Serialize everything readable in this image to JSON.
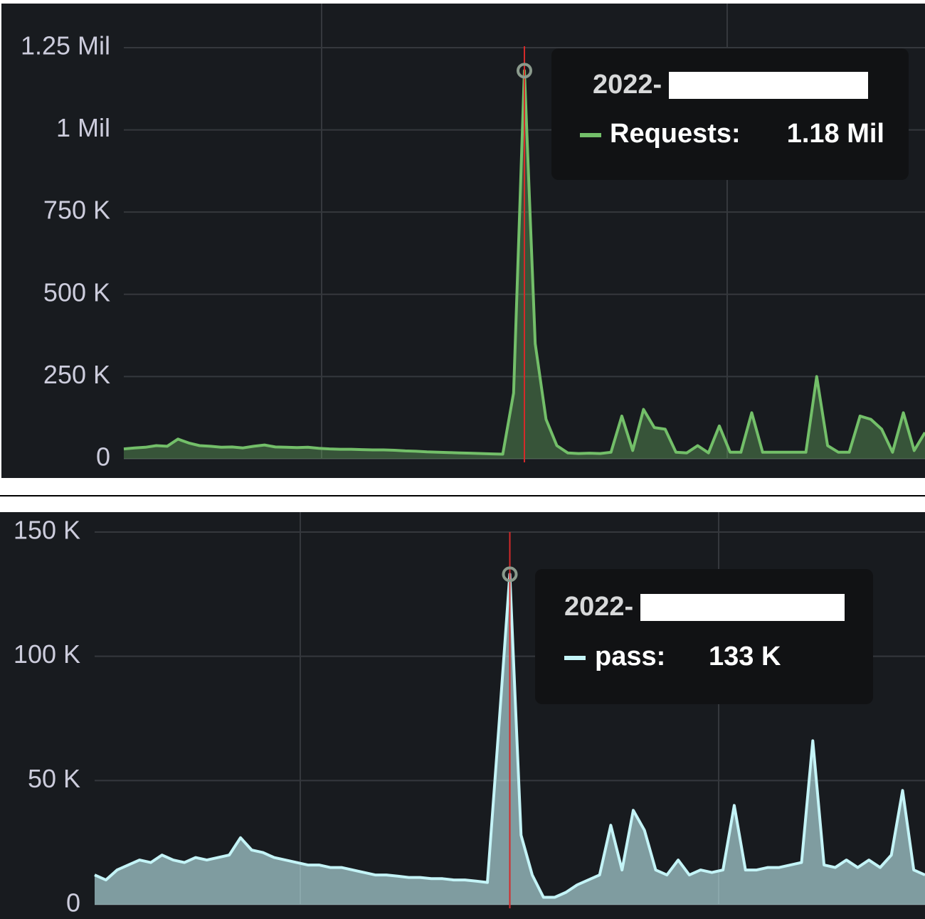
{
  "chart_data": [
    {
      "type": "line",
      "color": "#73bf69",
      "values": [
        30000,
        33000,
        35000,
        40000,
        38000,
        60000,
        48000,
        40000,
        38000,
        35000,
        36000,
        33000,
        38000,
        42000,
        36000,
        35000,
        34000,
        35000,
        32000,
        30000,
        29000,
        29000,
        28000,
        27000,
        27000,
        26000,
        24000,
        23000,
        21000,
        20000,
        19000,
        18000,
        17000,
        16000,
        15000,
        14000,
        200000,
        1180000,
        350000,
        120000,
        40000,
        18000,
        16000,
        17000,
        16000,
        20000,
        130000,
        25000,
        150000,
        95000,
        90000,
        20000,
        18000,
        40000,
        18000,
        100000,
        20000,
        20000,
        140000,
        20000,
        20000,
        20000,
        20000,
        20000,
        250000,
        40000,
        20000,
        20000,
        130000,
        120000,
        90000,
        20000,
        140000,
        25000,
        80000
      ],
      "ylim": [
        0,
        1384000
      ],
      "yticks": [
        0,
        {
          "value": 250000,
          "label": "250 K"
        },
        {
          "value": 500000,
          "label": "500 K"
        },
        {
          "value": 750000,
          "label": "750 K"
        },
        {
          "value": 1000000,
          "label": "1 Mil"
        },
        {
          "value": 1250000,
          "label": "1.25 Mil"
        }
      ],
      "grid": true,
      "tooltip": {
        "time": "2022-",
        "label": "Requests:",
        "value": 1180000,
        "value_label": "1.18 Mil"
      }
    },
    {
      "type": "line",
      "color": "#c4f4f7",
      "values": [
        12000,
        10000,
        14000,
        16000,
        18000,
        17000,
        20000,
        18000,
        17000,
        19000,
        18000,
        19000,
        20000,
        27000,
        22000,
        21000,
        19000,
        18000,
        17000,
        16000,
        16000,
        15000,
        15000,
        14000,
        13000,
        12000,
        12000,
        11500,
        11000,
        11000,
        10500,
        10500,
        10000,
        10000,
        9500,
        9000,
        70000,
        133000,
        28000,
        12000,
        3000,
        3000,
        5000,
        8000,
        10000,
        12000,
        32000,
        14000,
        38000,
        30000,
        14000,
        12000,
        18000,
        12000,
        14000,
        13000,
        14000,
        40000,
        14000,
        14000,
        15000,
        15000,
        16000,
        17000,
        66000,
        16000,
        15000,
        18000,
        15000,
        18000,
        15000,
        20000,
        46000,
        14000,
        12000
      ],
      "ylim": [
        0,
        158000
      ],
      "yticks": [
        0,
        {
          "value": 50000,
          "label": "50 K"
        },
        {
          "value": 100000,
          "label": "100 K"
        },
        {
          "value": 150000,
          "label": "150 K"
        }
      ],
      "grid": true,
      "tooltip": {
        "time": "2022-",
        "label": "pass:",
        "value": 133000,
        "value_label": "133 K"
      }
    }
  ]
}
